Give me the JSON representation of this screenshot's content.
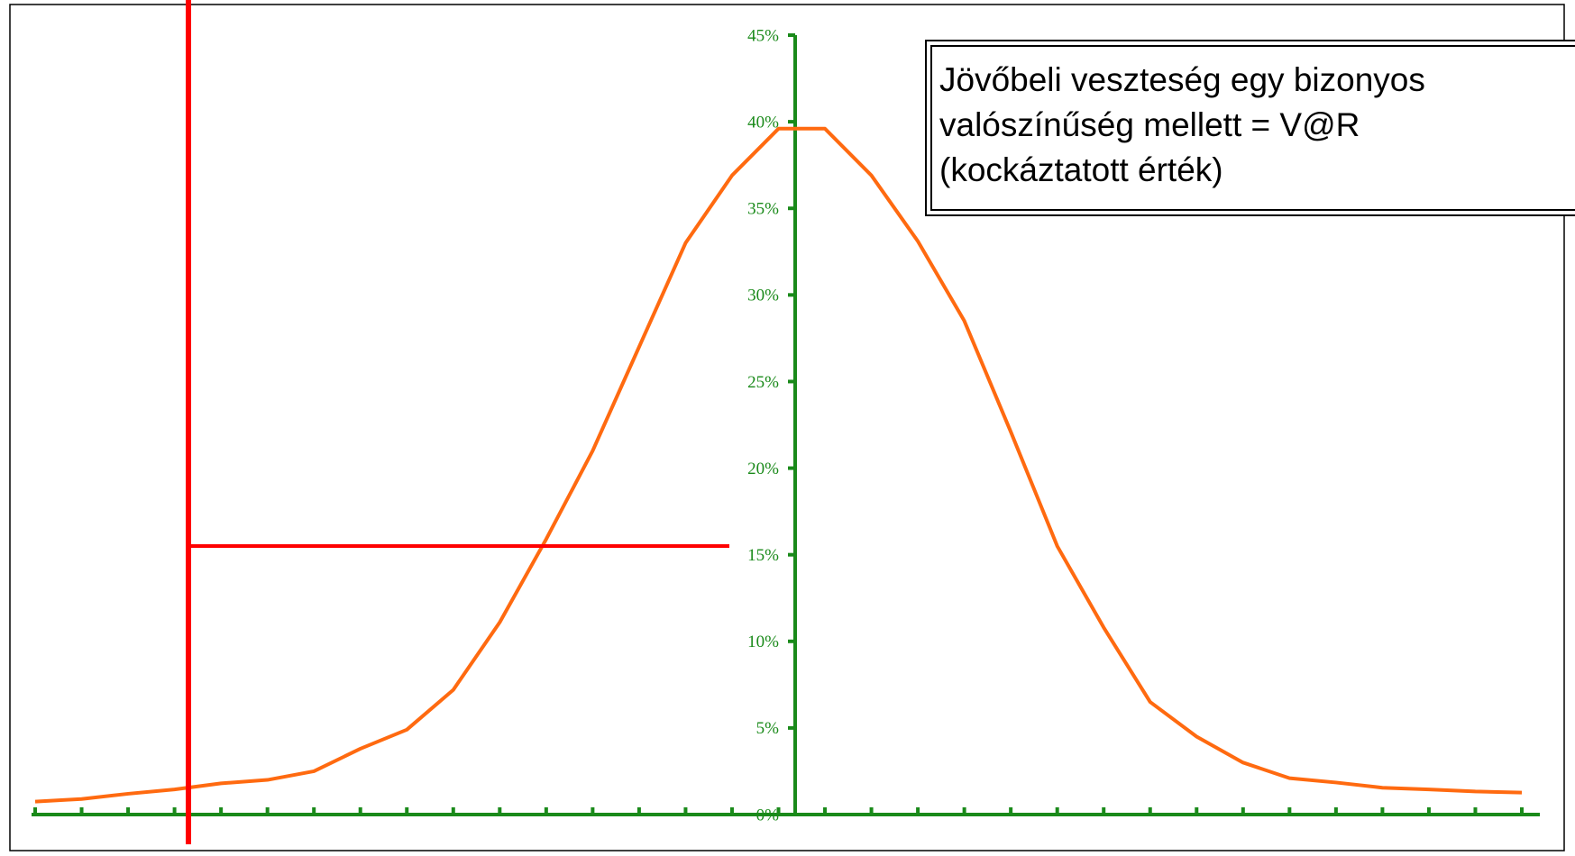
{
  "chart_data": {
    "type": "line",
    "categories": [
      null,
      null,
      null,
      null,
      null,
      null,
      null,
      null,
      null,
      null,
      null,
      null,
      null,
      null,
      null,
      null,
      null,
      null,
      null,
      null,
      null,
      null,
      null,
      null,
      null,
      null,
      null,
      null,
      null,
      null,
      null,
      null,
      null
    ],
    "series": [
      {
        "color": "#ff6a10",
        "values": [
          0.75,
          0.9,
          1.2,
          1.45,
          1.8,
          2.0,
          2.5,
          3.8,
          4.9,
          7.2,
          11.1,
          15.9,
          21,
          27,
          33,
          36.9,
          39.6,
          39.6,
          36.9,
          33.1,
          28.5,
          22.1,
          15.5,
          10.8,
          6.5,
          4.5,
          3.0,
          2.1,
          1.85,
          1.55,
          1.45,
          1.33,
          1.27
        ]
      }
    ],
    "ylim": [
      0,
      45
    ],
    "yticks": [
      {
        "value": 0,
        "label": "0%"
      },
      {
        "value": 5,
        "label": "5%"
      },
      {
        "value": 10,
        "label": "10%"
      },
      {
        "value": 15,
        "label": "15%"
      },
      {
        "value": 20,
        "label": "20%"
      },
      {
        "value": 25,
        "label": "25%"
      },
      {
        "value": 30,
        "label": "30%"
      },
      {
        "value": 35,
        "label": "35%"
      },
      {
        "value": 40,
        "label": "40%"
      },
      {
        "value": 45,
        "label": "45%"
      }
    ],
    "axis_color": "#1a8a1a",
    "annotation": [
      "Jövőbeli veszteség egy bizonyos",
      "valószínűség mellett = V@R",
      "(kockáztatott érték)"
    ]
  }
}
